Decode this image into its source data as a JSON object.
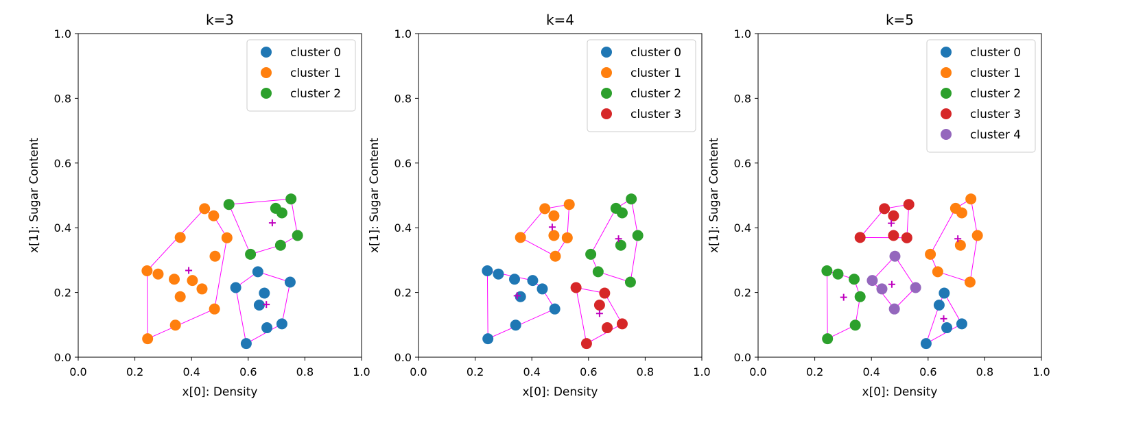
{
  "chart_data": [
    {
      "type": "scatter",
      "title": "k=3",
      "xlabel": "x[0]: Density",
      "ylabel": "x[1]: Sugar Content",
      "xlim": [
        0.0,
        1.0
      ],
      "ylim": [
        0.0,
        1.0
      ],
      "xticks": [
        "0.0",
        "0.2",
        "0.4",
        "0.6",
        "0.8",
        "1.0"
      ],
      "yticks": [
        "0.0",
        "0.2",
        "0.4",
        "0.6",
        "0.8",
        "1.0"
      ],
      "legend_position": "top-right",
      "grid": false,
      "centroid_color": "#bf00bf",
      "hull_color": "#ff00ff",
      "series": [
        {
          "name": "cluster 0",
          "color": "#1f77b4",
          "x": [
            0.556,
            0.593,
            0.634,
            0.639,
            0.657,
            0.666,
            0.719,
            0.748
          ],
          "y": [
            0.215,
            0.042,
            0.264,
            0.161,
            0.198,
            0.091,
            0.103,
            0.232
          ]
        },
        {
          "name": "cluster 1",
          "color": "#ff7f0e",
          "x": [
            0.243,
            0.245,
            0.282,
            0.339,
            0.343,
            0.36,
            0.36,
            0.403,
            0.437,
            0.446,
            0.478,
            0.481,
            0.483,
            0.525
          ],
          "y": [
            0.267,
            0.057,
            0.257,
            0.241,
            0.099,
            0.37,
            0.187,
            0.237,
            0.211,
            0.459,
            0.437,
            0.149,
            0.312,
            0.369
          ]
        },
        {
          "name": "cluster 2",
          "color": "#2ca02c",
          "x": [
            0.532,
            0.608,
            0.697,
            0.714,
            0.719,
            0.751,
            0.774
          ],
          "y": [
            0.472,
            0.318,
            0.46,
            0.346,
            0.446,
            0.489,
            0.376
          ]
        }
      ],
      "centroids": {
        "x": [
          0.664,
          0.39,
          0.685
        ],
        "y": [
          0.163,
          0.268,
          0.415
        ]
      }
    },
    {
      "type": "scatter",
      "title": "k=4",
      "xlabel": "x[0]: Density",
      "ylabel": "x[1]: Sugar Content",
      "xlim": [
        0.0,
        1.0
      ],
      "ylim": [
        0.0,
        1.0
      ],
      "xticks": [
        "0.0",
        "0.2",
        "0.4",
        "0.6",
        "0.8",
        "1.0"
      ],
      "yticks": [
        "0.0",
        "0.2",
        "0.4",
        "0.6",
        "0.8",
        "1.0"
      ],
      "legend_position": "top-right",
      "grid": false,
      "centroid_color": "#bf00bf",
      "hull_color": "#ff00ff",
      "series": [
        {
          "name": "cluster 0",
          "color": "#1f77b4",
          "x": [
            0.243,
            0.245,
            0.282,
            0.339,
            0.343,
            0.36,
            0.403,
            0.437,
            0.481
          ],
          "y": [
            0.267,
            0.057,
            0.257,
            0.241,
            0.099,
            0.187,
            0.237,
            0.211,
            0.149
          ]
        },
        {
          "name": "cluster 1",
          "color": "#ff7f0e",
          "x": [
            0.36,
            0.446,
            0.478,
            0.478,
            0.483,
            0.525,
            0.532
          ],
          "y": [
            0.37,
            0.459,
            0.437,
            0.376,
            0.312,
            0.369,
            0.472
          ]
        },
        {
          "name": "cluster 2",
          "color": "#2ca02c",
          "x": [
            0.608,
            0.634,
            0.697,
            0.714,
            0.719,
            0.748,
            0.751,
            0.774
          ],
          "y": [
            0.318,
            0.264,
            0.46,
            0.346,
            0.446,
            0.232,
            0.489,
            0.376
          ]
        },
        {
          "name": "cluster 3",
          "color": "#d62728",
          "x": [
            0.556,
            0.593,
            0.639,
            0.657,
            0.666,
            0.719
          ],
          "y": [
            0.215,
            0.042,
            0.161,
            0.198,
            0.091,
            0.103
          ]
        }
      ],
      "centroids": {
        "x": [
          0.348,
          0.472,
          0.706,
          0.639
        ],
        "y": [
          0.19,
          0.402,
          0.366,
          0.135
        ]
      }
    },
    {
      "type": "scatter",
      "title": "k=5",
      "xlabel": "x[0]: Density",
      "ylabel": "x[1]: Sugar Content",
      "xlim": [
        0.0,
        1.0
      ],
      "ylim": [
        0.0,
        1.0
      ],
      "xticks": [
        "0.0",
        "0.2",
        "0.4",
        "0.6",
        "0.8",
        "1.0"
      ],
      "yticks": [
        "0.0",
        "0.2",
        "0.4",
        "0.6",
        "0.8",
        "1.0"
      ],
      "legend_position": "top-right",
      "grid": false,
      "centroid_color": "#bf00bf",
      "hull_color": "#ff00ff",
      "series": [
        {
          "name": "cluster 0",
          "color": "#1f77b4",
          "x": [
            0.593,
            0.639,
            0.657,
            0.666,
            0.719
          ],
          "y": [
            0.042,
            0.161,
            0.198,
            0.091,
            0.103
          ]
        },
        {
          "name": "cluster 1",
          "color": "#ff7f0e",
          "x": [
            0.608,
            0.634,
            0.697,
            0.714,
            0.719,
            0.748,
            0.751,
            0.774
          ],
          "y": [
            0.318,
            0.264,
            0.46,
            0.346,
            0.446,
            0.232,
            0.489,
            0.376
          ]
        },
        {
          "name": "cluster 2",
          "color": "#2ca02c",
          "x": [
            0.243,
            0.245,
            0.282,
            0.339,
            0.343,
            0.36
          ],
          "y": [
            0.267,
            0.057,
            0.257,
            0.241,
            0.099,
            0.187
          ]
        },
        {
          "name": "cluster 3",
          "color": "#d62728",
          "x": [
            0.36,
            0.446,
            0.478,
            0.478,
            0.525,
            0.532
          ],
          "y": [
            0.37,
            0.459,
            0.437,
            0.376,
            0.369,
            0.472
          ]
        },
        {
          "name": "cluster 4",
          "color": "#9467bd",
          "x": [
            0.403,
            0.437,
            0.481,
            0.483,
            0.556
          ],
          "y": [
            0.237,
            0.211,
            0.149,
            0.312,
            0.215
          ]
        }
      ],
      "centroids": {
        "x": [
          0.655,
          0.705,
          0.302,
          0.47,
          0.472
        ],
        "y": [
          0.119,
          0.366,
          0.185,
          0.414,
          0.225
        ]
      }
    }
  ]
}
